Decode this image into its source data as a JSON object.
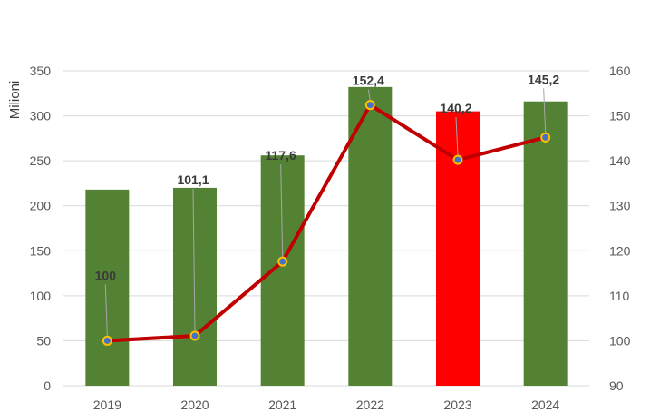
{
  "chart_data": {
    "type": "bar",
    "categories": [
      "2019",
      "2020",
      "2021",
      "2022",
      "2023",
      "2024"
    ],
    "series": [
      {
        "type": "bar",
        "axis": "left",
        "values": [
          218,
          220,
          256,
          332,
          305,
          316
        ],
        "colors": [
          "#548235",
          "#548235",
          "#548235",
          "#548235",
          "#ff0000",
          "#548235"
        ]
      },
      {
        "type": "line",
        "axis": "right",
        "values": [
          100,
          101.1,
          117.6,
          152.4,
          140.2,
          145.2
        ],
        "data_labels": [
          "100",
          "101,1",
          "117,6",
          "152,4",
          "140,2",
          "145,2"
        ],
        "color": "#c00000",
        "marker_fill": "#4472c4",
        "marker_edge": "#ffc000"
      }
    ],
    "ylabel": "Milioni",
    "xlabel": "",
    "ylim": [
      0,
      350
    ],
    "y_ticks": [
      "0",
      "50",
      "100",
      "150",
      "200",
      "250",
      "300",
      "350"
    ],
    "y2lim": [
      90,
      160
    ],
    "y2_ticks": [
      "90",
      "100",
      "110",
      "120",
      "130",
      "140",
      "150",
      "160"
    ],
    "grid": true
  }
}
